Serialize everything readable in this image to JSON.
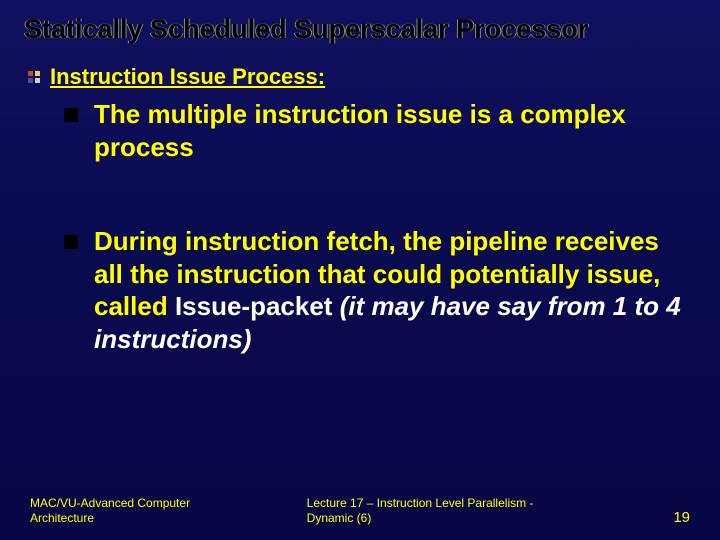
{
  "slide": {
    "title": "Statically Scheduled Superscalar Processor",
    "subtitle": "Instruction Issue Process:",
    "bullets": [
      {
        "text_yellow": "The multiple instruction issue is a complex process",
        "text_white": "",
        "text_italic": ""
      },
      {
        "text_yellow": "During instruction fetch, the pipeline receives all the instruction that could potentially issue, called ",
        "text_white": "Issue-packet ",
        "text_italic": "(it may have say from 1 to 4 instructions)"
      }
    ],
    "footer": {
      "left": "MAC/VU-Advanced Computer Architecture",
      "center": "Lecture 17 – Instruction Level Parallelism -Dynamic (6)",
      "page": "19"
    },
    "colors": {
      "bg_top": "#101060",
      "bg_bottom": "#070745",
      "title_color": "#000000",
      "primary_text": "#ffff00",
      "accent_text": "#ffffff",
      "bullet_square": "#000000"
    }
  }
}
